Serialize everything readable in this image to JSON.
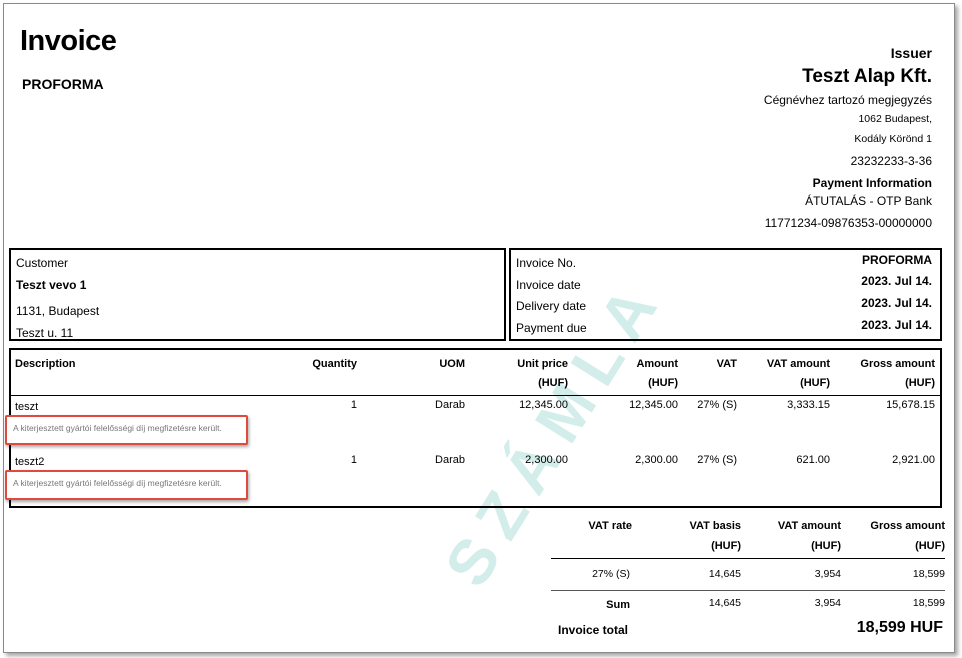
{
  "title": "Invoice",
  "subtitle": "PROFORMA",
  "issuer": {
    "label": "Issuer",
    "name": "Teszt Alap Kft.",
    "note": "Cégnévhez tartozó megjegyzés",
    "address1": "1062 Budapest,",
    "address2": "Kodály Körönd 1",
    "tax_id": "23232233-3-36",
    "payment_label": "Payment Information",
    "payment_method": "ÁTUTALÁS - OTP Bank",
    "account": "11771234-09876353-00000000"
  },
  "customer": {
    "label": "Customer",
    "name": "Teszt vevo 1",
    "city": "1131, Budapest",
    "street": "Teszt u. 11"
  },
  "invoice_info": {
    "no_label": "Invoice No.",
    "no_value": "PROFORMA",
    "date_label": "Invoice date",
    "date_value": "2023. Jul 14.",
    "delivery_label": "Delivery date",
    "delivery_value": "2023. Jul 14.",
    "due_label": "Payment due",
    "due_value": "2023. Jul 14."
  },
  "line_headers": {
    "description": "Description",
    "quantity": "Quantity",
    "uom": "UOM",
    "unit_price": "Unit price",
    "amount": "Amount",
    "vat": "VAT",
    "vat_amount": "VAT amount",
    "gross_amount": "Gross amount",
    "currency": "(HUF)"
  },
  "lines": [
    {
      "description": "teszt",
      "quantity": "1",
      "uom": "Darab",
      "unit_price": "12,345.00",
      "amount": "12,345.00",
      "vat": "27% (S)",
      "vat_amount": "3,333.15",
      "gross": "15,678.15",
      "note": "A kiterjesztett gyártói felelősségi díj megfizetésre került."
    },
    {
      "description": "teszt2",
      "quantity": "1",
      "uom": "Darab",
      "unit_price": "2,300.00",
      "amount": "2,300.00",
      "vat": "27% (S)",
      "vat_amount": "621.00",
      "gross": "2,921.00",
      "note": "A kiterjesztett gyártói felelősségi díj megfizetésre került."
    }
  ],
  "summary": {
    "vat_rate": "VAT rate",
    "vat_basis": "VAT basis",
    "vat_amount": "VAT amount",
    "gross_amount": "Gross amount",
    "currency": "(HUF)",
    "row_rate": "27% (S)",
    "row_basis": "14,645",
    "row_vat": "3,954",
    "row_gross": "18,599",
    "sum_label": "Sum",
    "sum_basis": "14,645",
    "sum_vat": "3,954",
    "sum_gross": "18,599",
    "total_label": "Invoice total",
    "total_value": "18,599 HUF"
  },
  "watermark": "SZÁMLA"
}
